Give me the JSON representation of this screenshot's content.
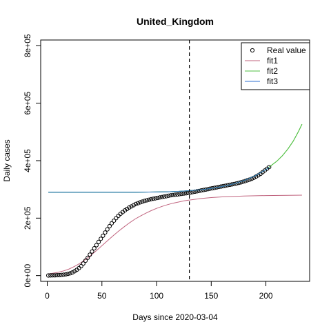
{
  "chart_data": {
    "type": "line",
    "title": "United_Kingdom",
    "xlabel": "Days since 2020-03-04",
    "ylabel": "Daily cases",
    "xlim": [
      -6,
      240
    ],
    "ylim": [
      -20000,
      820000
    ],
    "x_ticks": [
      0,
      50,
      100,
      150,
      200
    ],
    "x_tick_labels": [
      "0",
      "50",
      "100",
      "150",
      "200"
    ],
    "y_ticks": [
      0,
      200000,
      400000,
      600000,
      800000
    ],
    "y_tick_labels": [
      "0e+00",
      "2e+05",
      "4e+05",
      "6e+05",
      "8e+05"
    ],
    "grid": false,
    "legend_position": "top-right",
    "vline": {
      "x": 130,
      "style": "dashed",
      "color": "#000000"
    },
    "series": [
      {
        "name": "Real value",
        "kind": "points",
        "color": "#000000",
        "x": [
          1,
          3,
          5,
          7,
          9,
          11,
          13,
          15,
          17,
          19,
          21,
          23,
          25,
          27,
          29,
          31,
          33,
          35,
          37,
          39,
          41,
          43,
          45,
          47,
          49,
          51,
          53,
          55,
          57,
          59,
          61,
          63,
          65,
          67,
          69,
          71,
          73,
          75,
          77,
          79,
          81,
          83,
          85,
          87,
          89,
          91,
          93,
          95,
          97,
          99,
          101,
          103,
          105,
          107,
          109,
          111,
          113,
          115,
          117,
          119,
          121,
          123,
          125,
          127,
          129,
          131,
          133,
          135,
          137,
          139,
          141,
          143,
          145,
          147,
          149,
          151,
          153,
          155,
          157,
          159,
          161,
          163,
          165,
          167,
          169,
          171,
          173,
          175,
          177,
          179,
          181,
          183,
          185,
          187,
          189,
          191,
          193,
          195,
          197,
          199,
          201,
          203
        ],
        "y": [
          500,
          600,
          800,
          1000,
          1300,
          1700,
          2400,
          3300,
          4600,
          6000,
          8000,
          11000,
          15000,
          20000,
          26000,
          33000,
          42000,
          52000,
          62000,
          73000,
          84000,
          95000,
          106000,
          117000,
          128000,
          139000,
          150000,
          161000,
          172000,
          182000,
          191000,
          200000,
          208000,
          215000,
          221000,
          227000,
          232000,
          237000,
          241000,
          245000,
          249000,
          252000,
          255000,
          257500,
          260000,
          262000,
          264000,
          266000,
          267500,
          269000,
          270500,
          272000,
          273500,
          275000,
          276500,
          278000,
          279500,
          280500,
          281500,
          282500,
          283500,
          284500,
          285500,
          286500,
          287500,
          289000,
          290500,
          292000,
          293500,
          295000,
          296500,
          298000,
          299500,
          301000,
          302500,
          304000,
          305500,
          307000,
          308500,
          310000,
          311500,
          313000,
          314500,
          316000,
          317500,
          319000,
          320500,
          322500,
          324500,
          326500,
          329000,
          331500,
          334000,
          337000,
          340500,
          344500,
          349000,
          354000,
          360000,
          366000,
          372000,
          378000
        ]
      },
      {
        "name": "fit1",
        "kind": "line",
        "color": "#c0637e",
        "x": [
          1,
          5,
          10,
          15,
          20,
          25,
          30,
          35,
          40,
          45,
          50,
          55,
          60,
          65,
          70,
          75,
          80,
          85,
          90,
          95,
          100,
          105,
          110,
          115,
          120,
          125,
          130,
          140,
          150,
          160,
          180,
          200,
          220,
          233
        ],
        "y": [
          6000,
          8000,
          11500,
          16500,
          23000,
          32000,
          43000,
          56000,
          71000,
          87000,
          104000,
          121000,
          138000,
          154000,
          169000,
          183000,
          196000,
          207000,
          217000,
          226000,
          234000,
          241000,
          247000,
          252000,
          256000,
          260000,
          263000,
          268000,
          271500,
          274000,
          277000,
          278500,
          279500,
          280000
        ]
      },
      {
        "name": "fit2",
        "kind": "line",
        "color": "#4fbf40",
        "x": [
          1,
          20,
          40,
          60,
          80,
          100,
          110,
          120,
          130,
          140,
          150,
          160,
          170,
          180,
          190,
          200,
          210,
          215,
          220,
          225,
          230,
          233
        ],
        "y": [
          290000,
          290000,
          290000,
          290100,
          290300,
          291000,
          291800,
          293200,
          295500,
          298800,
          303500,
          310000,
          319000,
          331000,
          347000,
          369000,
          398000,
          417000,
          440000,
          468000,
          503000,
          527000
        ]
      },
      {
        "name": "fit3",
        "kind": "line",
        "color": "#2e6fd0",
        "x": [
          1,
          20,
          40,
          60,
          80,
          100,
          110,
          120,
          130,
          140,
          150,
          160,
          170,
          180,
          190,
          200,
          203
        ],
        "y": [
          290000,
          290000,
          290000,
          290100,
          290300,
          291000,
          291800,
          293200,
          295500,
          298800,
          303500,
          310000,
          319000,
          331000,
          347000,
          369000,
          377000
        ]
      }
    ]
  }
}
